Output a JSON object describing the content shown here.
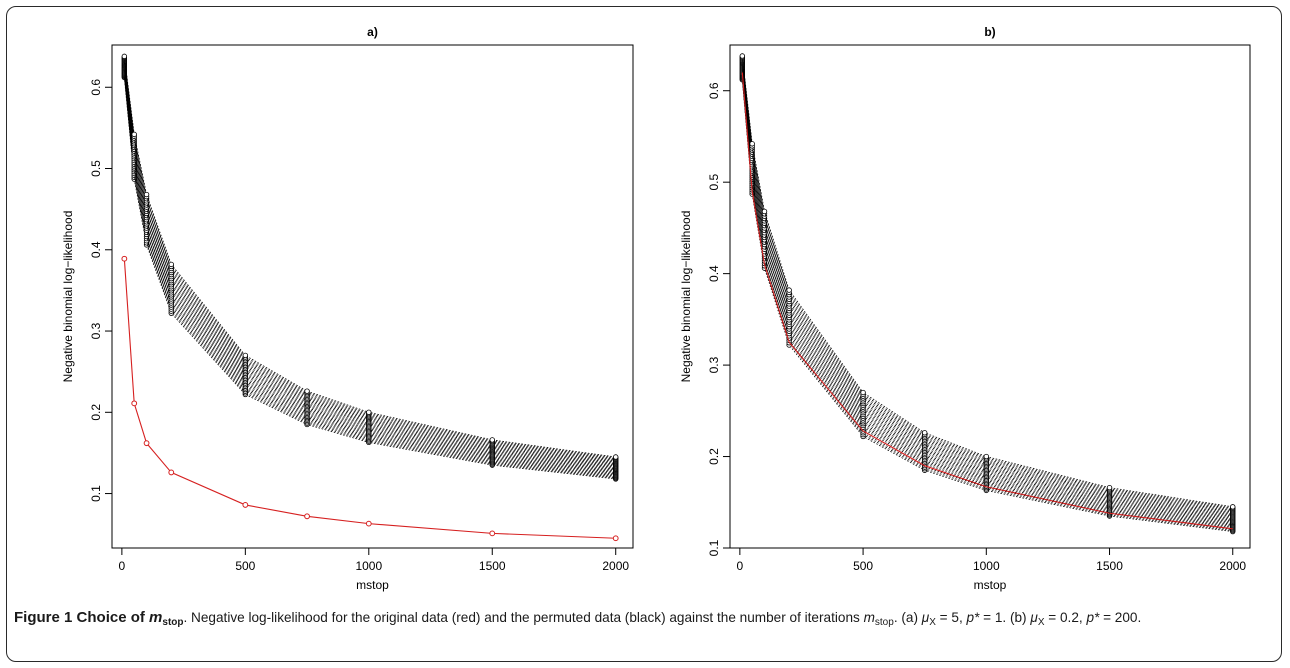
{
  "figure": {
    "label": "Figure 1",
    "title_prefix": "Choice of ",
    "title_var": "m",
    "title_sub": "stop",
    "text_1": ". Negative log-likelihood for the original data (red) and the permuted data (black) against the number of iterations ",
    "text_var": "m",
    "text_sub": "stop",
    "text_2": ". (a) ",
    "a_mu": "μ",
    "a_mu_sub": "X",
    "a_rest": " = 5, ",
    "a_p": "p*",
    "a_p_rest": " = 1. (b) ",
    "b_mu": "μ",
    "b_mu_sub": "X",
    "b_rest": " = 0.2, ",
    "b_p": "p*",
    "b_p_rest": " = 200."
  },
  "colors": {
    "original": "#d62020",
    "permuted": "#000000"
  },
  "chart_data": [
    {
      "type": "line",
      "title": "a)",
      "xlabel": "mstop",
      "ylabel": "Negative binomial log−likelihood",
      "x": [
        10,
        50,
        100,
        200,
        500,
        750,
        1000,
        1500,
        2000
      ],
      "xlim": [
        -40,
        2070
      ],
      "ylim": [
        0.033,
        0.652
      ],
      "xticks": [
        "0",
        "500",
        "1000",
        "1500",
        "2000"
      ],
      "xtick_values": [
        0,
        500,
        1000,
        1500,
        2000
      ],
      "yticks": [
        "0.1",
        "0.2",
        "0.3",
        "0.4",
        "0.5",
        "0.6"
      ],
      "ytick_values": [
        0.1,
        0.2,
        0.3,
        0.4,
        0.5,
        0.6
      ],
      "series": [
        {
          "values": [
            0.389,
            0.211,
            0.162,
            0.126,
            0.086,
            0.072,
            0.063,
            0.051,
            0.045
          ],
          "color": "#d62020",
          "style": "solid"
        }
      ],
      "permuted_band": {
        "count": 25,
        "upper": [
          0.638,
          0.542,
          0.468,
          0.382,
          0.27,
          0.226,
          0.2,
          0.166,
          0.145
        ],
        "lower": [
          0.612,
          0.487,
          0.406,
          0.322,
          0.222,
          0.185,
          0.163,
          0.135,
          0.118
        ],
        "color": "#000000",
        "style": "dotted"
      },
      "grid": false
    },
    {
      "type": "line",
      "title": "b)",
      "xlabel": "mstop",
      "ylabel": "Negative binomial log−likelihood",
      "x": [
        10,
        50,
        100,
        200,
        500,
        750,
        1000,
        1500,
        2000
      ],
      "xlim": [
        -40,
        2070
      ],
      "ylim": [
        0.1,
        0.65
      ],
      "xticks": [
        "0",
        "500",
        "1000",
        "1500",
        "2000"
      ],
      "xtick_values": [
        0,
        500,
        1000,
        1500,
        2000
      ],
      "yticks": [
        "0.1",
        "0.2",
        "0.3",
        "0.4",
        "0.5",
        "0.6"
      ],
      "ytick_values": [
        0.1,
        0.2,
        0.3,
        0.4,
        0.5,
        0.6
      ],
      "series": [
        {
          "values": [
            0.62,
            0.49,
            0.41,
            0.325,
            0.228,
            0.19,
            0.167,
            0.138,
            0.121
          ],
          "color": "#d62020",
          "style": "solid"
        }
      ],
      "permuted_band": {
        "count": 25,
        "upper": [
          0.638,
          0.542,
          0.468,
          0.382,
          0.27,
          0.226,
          0.2,
          0.166,
          0.145
        ],
        "lower": [
          0.612,
          0.487,
          0.406,
          0.322,
          0.222,
          0.185,
          0.163,
          0.135,
          0.118
        ],
        "color": "#000000",
        "style": "dotted"
      },
      "grid": false
    }
  ]
}
